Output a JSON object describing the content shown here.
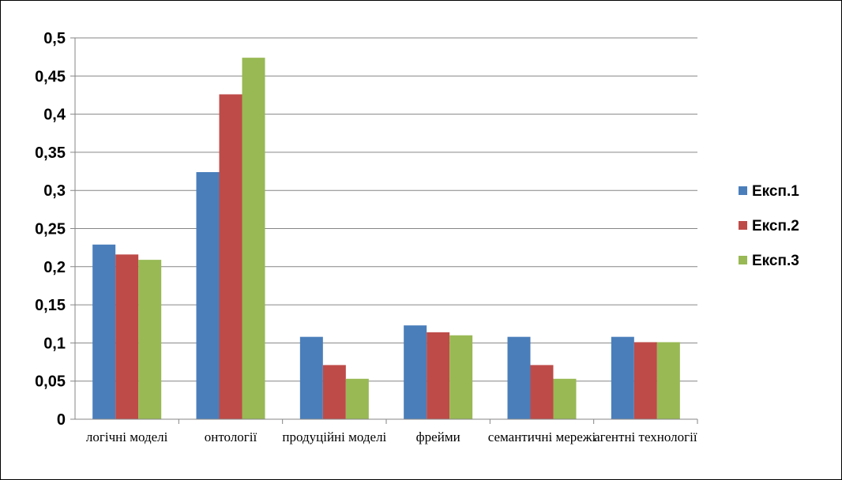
{
  "chart_data": {
    "type": "bar",
    "categories": [
      "логічні моделі",
      "онтології",
      "продуційні моделі",
      "фрейми",
      "семантичні мережі",
      "агентні технології"
    ],
    "series": [
      {
        "name": "Експ.1",
        "values": [
          0.229,
          0.324,
          0.108,
          0.123,
          0.108,
          0.108
        ]
      },
      {
        "name": "Експ.2",
        "values": [
          0.216,
          0.426,
          0.071,
          0.114,
          0.071,
          0.101
        ]
      },
      {
        "name": "Експ.3",
        "values": [
          0.209,
          0.474,
          0.053,
          0.11,
          0.053,
          0.101
        ]
      }
    ],
    "ylim": [
      0,
      0.5
    ],
    "yticks": [
      "0",
      "0,05",
      "0,1",
      "0,15",
      "0,2",
      "0,25",
      "0,3",
      "0,35",
      "0,4",
      "0,45",
      "0,5"
    ],
    "title": "",
    "xlabel": "",
    "ylabel": "",
    "grid": true,
    "legend_position": "right",
    "colors": [
      "#4a7ebb",
      "#be4b48",
      "#98b954"
    ]
  }
}
